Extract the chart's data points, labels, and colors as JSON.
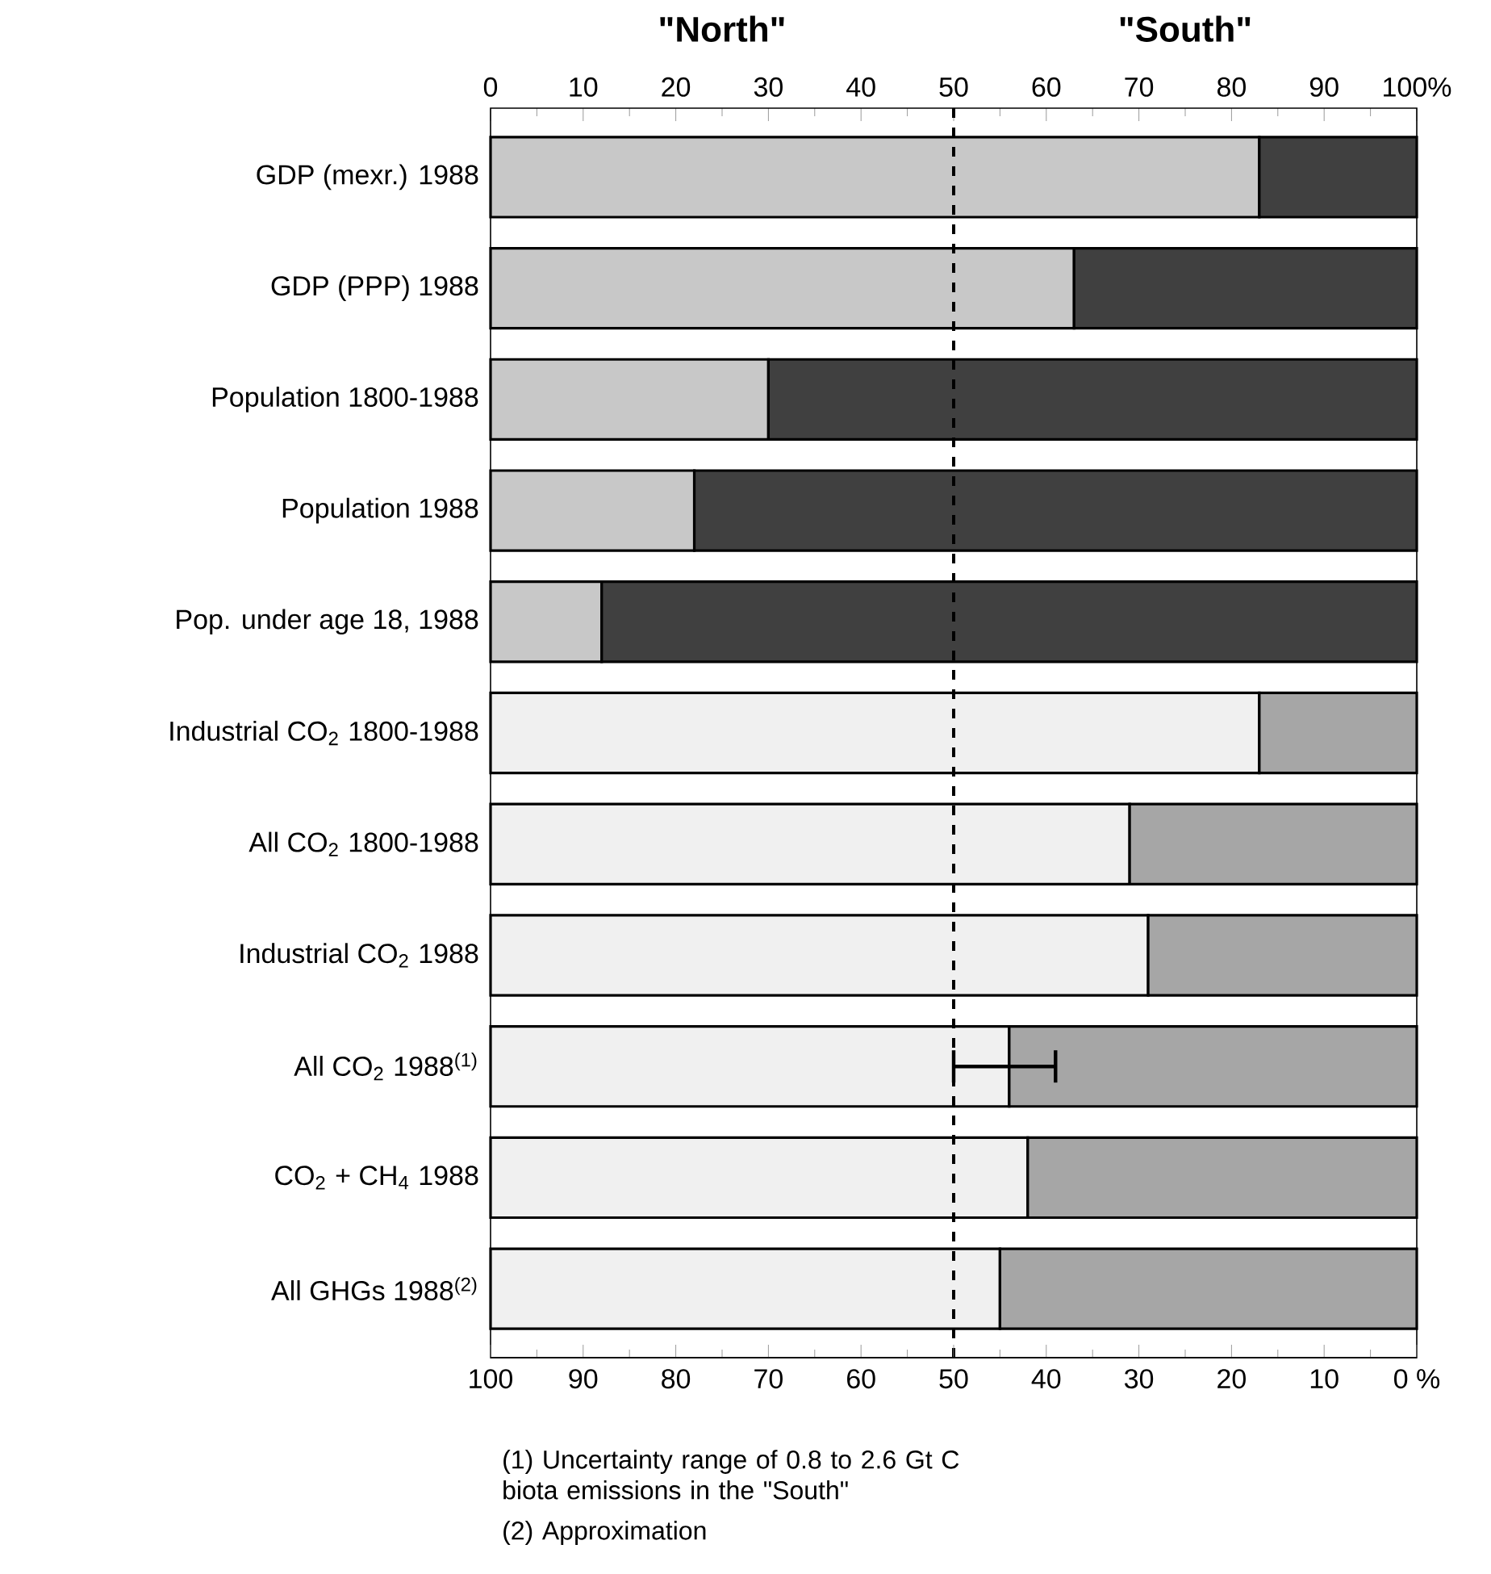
{
  "chart_data": {
    "type": "bar",
    "orientation": "horizontal",
    "stacked": true,
    "categories": [
      "GDP (mexr.) 1988",
      "GDP (PPP) 1988",
      "Population 1800-1988",
      "Population 1988",
      "Pop. under age 18, 1988",
      "Industrial CO$_{2}$ 1800-1988",
      "All CO$_{2}$ 1800-1988",
      "Industrial CO$_{2}$ 1988",
      "All CO$_{2}$ 1988$^{(1)}$",
      "CO$_{2}$ + CH$_{4}$ 1988",
      "All GHGs 1988$^{(2)}$"
    ],
    "series": [
      {
        "name": "\"North\"",
        "colors": [
          "#c8c8c8",
          "#c8c8c8",
          "#c8c8c8",
          "#c8c8c8",
          "#c8c8c8",
          "#f0f0f0",
          "#f0f0f0",
          "#f0f0f0",
          "#f0f0f0",
          "#f0f0f0",
          "#f0f0f0"
        ],
        "values": [
          83,
          63,
          30,
          22,
          12,
          83,
          69,
          71,
          56,
          58,
          55
        ],
        "errors": [
          null,
          null,
          null,
          null,
          null,
          null,
          null,
          null,
          [
            50,
            61
          ],
          null,
          null
        ]
      },
      {
        "name": "\"South\"",
        "colors": [
          "#404040",
          "#404040",
          "#404040",
          "#404040",
          "#404040",
          "#a6a6a6",
          "#a6a6a6",
          "#a6a6a6",
          "#a6a6a6",
          "#a6a6a6",
          "#a6a6a6"
        ],
        "values": [
          17,
          37,
          70,
          78,
          88,
          17,
          31,
          29,
          44,
          42,
          45
        ]
      }
    ],
    "xlim": [
      0,
      100
    ],
    "xticks": [
      0,
      10,
      20,
      30,
      40,
      50,
      60,
      70,
      80,
      90,
      {
        "value": 100,
        "label": "100%"
      }
    ],
    "x2lim": [
      100,
      0
    ],
    "x2ticks": [
      100,
      90,
      80,
      70,
      60,
      50,
      40,
      30,
      20,
      10,
      {
        "value": 0,
        "label": "0 %"
      }
    ],
    "ref_lines": [
      {
        "axis": "x",
        "value": 50,
        "line_style": "dashed"
      }
    ],
    "legend": false,
    "annotations": [
      "(1) Uncertainty range of 0.8 to 2.6 Gt C biota emissions in the \"South\"",
      "(2) Approximation"
    ]
  }
}
